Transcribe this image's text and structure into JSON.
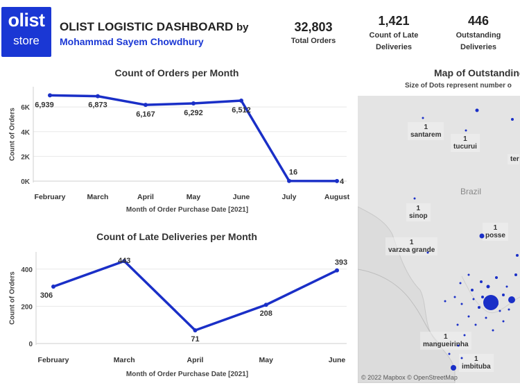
{
  "header": {
    "logo_main": "olist",
    "logo_sub": "store",
    "title": "OLIST LOGISTIC DASHBOARD",
    "title_by": "by",
    "author": "Mohammad Sayem Chowdhury",
    "accent_color": "#1a37d4"
  },
  "kpis": [
    {
      "value": "32,803",
      "label": "Total Orders"
    },
    {
      "value": "1,421",
      "label": "Count of Late Deliveries"
    },
    {
      "value": "446",
      "label": "Outstanding Deliveries"
    }
  ],
  "map": {
    "title": "Map of Outstanding",
    "subtitle": "Size of Dots represent number o",
    "country_label": "Brazil",
    "cities": [
      {
        "count": "1",
        "name": "santarem"
      },
      {
        "count": "1",
        "name": "tucurui"
      },
      {
        "count": "",
        "name": "ter"
      },
      {
        "count": "1",
        "name": "sinop"
      },
      {
        "count": "1",
        "name": "posse"
      },
      {
        "count": "1",
        "name": "varzea grande"
      },
      {
        "count": "1",
        "name": "mangueirinha"
      },
      {
        "count": "1",
        "name": "imbituba"
      }
    ],
    "attribution": "© 2022 Mapbox © OpenStreetMap"
  },
  "chart_data": [
    {
      "type": "line",
      "title": "Count of Orders per Month",
      "xlabel": "Month of Order Purchase Date [2021]",
      "ylabel": "Count of Orders",
      "categories": [
        "February",
        "March",
        "April",
        "May",
        "June",
        "July",
        "August"
      ],
      "values": [
        6939,
        6873,
        6167,
        6292,
        6512,
        16,
        4
      ],
      "value_labels": [
        "6,939",
        "6,873",
        "6,167",
        "6,292",
        "6,512",
        "16",
        "4"
      ],
      "yticks": [
        0,
        2000,
        4000,
        6000
      ],
      "ytick_labels": [
        "0K",
        "2K",
        "4K",
        "6K"
      ],
      "ylim": [
        0,
        7300
      ],
      "color": "#1a2fc7"
    },
    {
      "type": "line",
      "title": "Count of Late Deliveries per Month",
      "xlabel": "Month of Order Purchase Date [2021]",
      "ylabel": "Count of Orders",
      "categories": [
        "February",
        "March",
        "April",
        "May",
        "June"
      ],
      "values": [
        306,
        443,
        71,
        208,
        393
      ],
      "value_labels": [
        "306",
        "443",
        "71",
        "208",
        "393"
      ],
      "yticks": [
        0,
        200,
        400
      ],
      "ytick_labels": [
        "0",
        "200",
        "400"
      ],
      "ylim": [
        0,
        470
      ],
      "color": "#1a2fc7"
    }
  ]
}
